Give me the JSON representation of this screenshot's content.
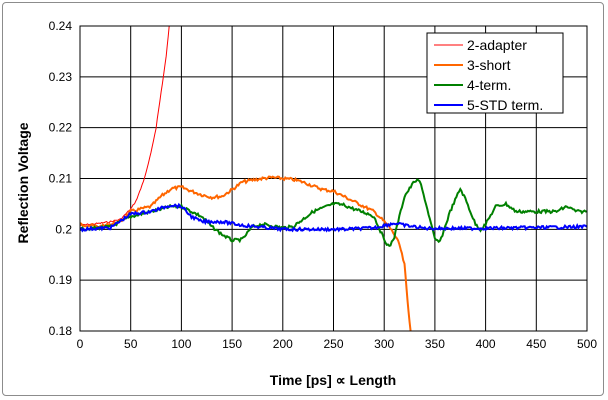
{
  "chart_data": {
    "type": "line",
    "title": "",
    "xlabel": "Time [ps]  ∝  Length",
    "ylabel": "Reflection Voltage",
    "xlim": [
      0,
      500
    ],
    "ylim": [
      0.18,
      0.24
    ],
    "xticks": [
      "0",
      "50",
      "100",
      "150",
      "200",
      "250",
      "300",
      "350",
      "400",
      "450",
      "500"
    ],
    "yticks": [
      "0.18",
      "0.19",
      "0.2",
      "0.21",
      "0.22",
      "0.23",
      "0.24"
    ],
    "grid": true,
    "legend_position": "top-right",
    "series": [
      {
        "name": "2-adapter",
        "color": "#ff0000",
        "width": 1,
        "x": [
          0,
          10,
          20,
          30,
          40,
          50,
          55,
          60,
          65,
          70,
          75,
          80,
          85,
          88
        ],
        "y": [
          0.2008,
          0.201,
          0.2012,
          0.2015,
          0.202,
          0.204,
          0.2055,
          0.208,
          0.211,
          0.215,
          0.22,
          0.227,
          0.234,
          0.24
        ]
      },
      {
        "name": "3-short",
        "color": "#ff6600",
        "width": 2,
        "x": [
          0,
          20,
          40,
          50,
          60,
          70,
          80,
          90,
          100,
          110,
          120,
          130,
          140,
          150,
          160,
          170,
          180,
          190,
          200,
          210,
          220,
          230,
          240,
          250,
          260,
          270,
          280,
          290,
          300,
          305,
          310,
          315,
          320,
          323,
          326
        ],
        "y": [
          0.201,
          0.2005,
          0.2015,
          0.2035,
          0.204,
          0.2045,
          0.2065,
          0.208,
          0.2083,
          0.2075,
          0.2068,
          0.2063,
          0.2065,
          0.2078,
          0.2093,
          0.2097,
          0.21,
          0.2102,
          0.21,
          0.2098,
          0.2093,
          0.2085,
          0.2078,
          0.2075,
          0.2065,
          0.2055,
          0.2045,
          0.2035,
          0.2015,
          0.2005,
          0.199,
          0.197,
          0.193,
          0.186,
          0.18
        ]
      },
      {
        "name": "4-term.",
        "color": "#008000",
        "width": 2,
        "x": [
          0,
          30,
          50,
          70,
          90,
          100,
          110,
          120,
          130,
          140,
          150,
          160,
          170,
          180,
          200,
          210,
          230,
          250,
          260,
          270,
          285,
          290,
          300,
          305,
          310,
          320,
          330,
          335,
          340,
          350,
          355,
          365,
          375,
          380,
          390,
          395,
          400,
          410,
          420,
          430,
          450,
          470,
          480,
          490,
          500
        ],
        "y": [
          0.2,
          0.2005,
          0.2025,
          0.2035,
          0.2045,
          0.2045,
          0.2035,
          0.2025,
          0.2005,
          0.199,
          0.1978,
          0.198,
          0.2005,
          0.201,
          0.2003,
          0.2005,
          0.2035,
          0.205,
          0.2048,
          0.204,
          0.203,
          0.2025,
          0.198,
          0.1965,
          0.1985,
          0.2065,
          0.2095,
          0.2095,
          0.206,
          0.198,
          0.1975,
          0.2035,
          0.208,
          0.206,
          0.201,
          0.2,
          0.201,
          0.2045,
          0.205,
          0.2035,
          0.2035,
          0.2035,
          0.2045,
          0.2035,
          0.2035
        ]
      },
      {
        "name": "5-STD term.",
        "color": "#0000ff",
        "width": 2,
        "x": [
          0,
          30,
          50,
          70,
          90,
          100,
          110,
          120,
          140,
          160,
          200,
          260,
          290,
          310,
          320,
          340,
          400,
          500
        ],
        "y": [
          0.2,
          0.2003,
          0.203,
          0.2035,
          0.2048,
          0.2045,
          0.2025,
          0.2015,
          0.2015,
          0.2008,
          0.2,
          0.2,
          0.2003,
          0.2012,
          0.2008,
          0.2002,
          0.2002,
          0.2005
        ]
      }
    ]
  }
}
